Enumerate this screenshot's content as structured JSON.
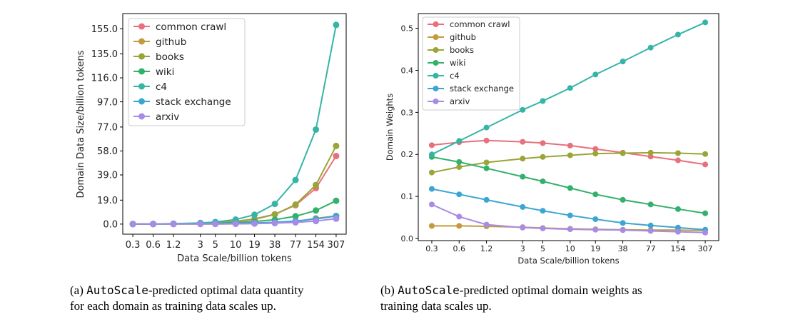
{
  "chart_data": [
    {
      "type": "line",
      "xlabel": "Data Scale/billion tokens",
      "ylabel": "Domain Data Size/billion tokens",
      "x": [
        "0.3",
        "0.6",
        "1.2",
        "3",
        "5",
        "10",
        "19",
        "38",
        "77",
        "154",
        "307"
      ],
      "x_values": [
        0.3,
        0.6,
        1.2,
        3,
        5,
        10,
        19,
        38,
        77,
        154,
        307
      ],
      "x_scale": "log",
      "y_ticks": [
        "0.0",
        "19.0",
        "39.0",
        "58.0",
        "77.0",
        "97.0",
        "116.0",
        "135.0",
        "155.0"
      ],
      "ylim": [
        -8,
        167
      ],
      "legend_position": "upper-left",
      "series": [
        {
          "name": "common crawl",
          "color": "#e8707c",
          "values": [
            0.07,
            0.14,
            0.28,
            0.69,
            1.14,
            2.2,
            4.1,
            7.8,
            15.0,
            28.5,
            54.0
          ]
        },
        {
          "name": "github",
          "color": "#c49a3c",
          "values": [
            0.01,
            0.02,
            0.03,
            0.08,
            0.12,
            0.22,
            0.45,
            1.0,
            2.0,
            4.5,
            6.5
          ]
        },
        {
          "name": "books",
          "color": "#9aa537",
          "values": [
            0.05,
            0.1,
            0.22,
            0.57,
            0.97,
            2.0,
            3.8,
            7.7,
            15.5,
            31.0,
            62.0
          ]
        },
        {
          "name": "wiki",
          "color": "#33b06b",
          "values": [
            0.06,
            0.11,
            0.2,
            0.44,
            0.68,
            1.2,
            2.0,
            3.5,
            6.2,
            10.8,
            18.5
          ]
        },
        {
          "name": "c4",
          "color": "#36b4a6",
          "values": [
            0.06,
            0.14,
            0.32,
            0.92,
            1.64,
            3.6,
            7.4,
            16.0,
            35.0,
            75.0,
            158.0
          ]
        },
        {
          "name": "stack exchange",
          "color": "#3ba6d3",
          "values": [
            0.04,
            0.06,
            0.11,
            0.23,
            0.33,
            0.55,
            0.87,
            1.4,
            2.4,
            4.0,
            6.4
          ]
        },
        {
          "name": "arxiv",
          "color": "#a78be7",
          "values": [
            0.02,
            0.03,
            0.04,
            0.08,
            0.12,
            0.22,
            0.4,
            0.76,
            1.35,
            2.4,
            4.3
          ]
        }
      ]
    },
    {
      "type": "line",
      "xlabel": "Data Scale/billion tokens",
      "ylabel": "Domain Weights",
      "x": [
        "0.3",
        "0.6",
        "1.2",
        "3",
        "5",
        "10",
        "19",
        "38",
        "77",
        "154",
        "307"
      ],
      "x_values": [
        0.3,
        0.6,
        1.2,
        3,
        5,
        10,
        19,
        38,
        77,
        154,
        307
      ],
      "x_scale": "log",
      "y_ticks": [
        "0.0",
        "0.1",
        "0.2",
        "0.3",
        "0.4",
        "0.5"
      ],
      "ylim": [
        -0.005,
        0.535
      ],
      "legend_position": "upper-left",
      "series": [
        {
          "name": "common crawl",
          "color": "#e8707c",
          "values": [
            0.222,
            0.229,
            0.233,
            0.23,
            0.227,
            0.221,
            0.213,
            0.204,
            0.195,
            0.186,
            0.176
          ]
        },
        {
          "name": "github",
          "color": "#c49a3c",
          "values": [
            0.03,
            0.03,
            0.029,
            0.027,
            0.025,
            0.023,
            0.022,
            0.021,
            0.02,
            0.02,
            0.019
          ]
        },
        {
          "name": "books",
          "color": "#9aa537",
          "values": [
            0.157,
            0.17,
            0.181,
            0.19,
            0.194,
            0.198,
            0.202,
            0.203,
            0.204,
            0.203,
            0.201
          ]
        },
        {
          "name": "wiki",
          "color": "#33b06b",
          "values": [
            0.194,
            0.182,
            0.167,
            0.147,
            0.136,
            0.12,
            0.105,
            0.092,
            0.081,
            0.07,
            0.06
          ]
        },
        {
          "name": "c4",
          "color": "#36b4a6",
          "values": [
            0.2,
            0.232,
            0.264,
            0.306,
            0.327,
            0.358,
            0.39,
            0.421,
            0.454,
            0.485,
            0.514
          ]
        },
        {
          "name": "stack exchange",
          "color": "#3ba6d3",
          "values": [
            0.118,
            0.105,
            0.092,
            0.075,
            0.066,
            0.055,
            0.046,
            0.037,
            0.031,
            0.026,
            0.021
          ]
        },
        {
          "name": "arxiv",
          "color": "#a78be7",
          "values": [
            0.081,
            0.052,
            0.033,
            0.026,
            0.024,
            0.022,
            0.021,
            0.02,
            0.018,
            0.016,
            0.014
          ]
        }
      ]
    }
  ],
  "captions": {
    "a_prefix": "(a) ",
    "a_code": "AutoScale",
    "a_rest": "-predicted optimal data quantity",
    "a_line2": "for each domain as training data scales up.",
    "b_prefix": "(b) ",
    "b_code": "AutoScale",
    "b_rest": "-predicted optimal domain weights as",
    "b_line2": "training data scales up."
  }
}
